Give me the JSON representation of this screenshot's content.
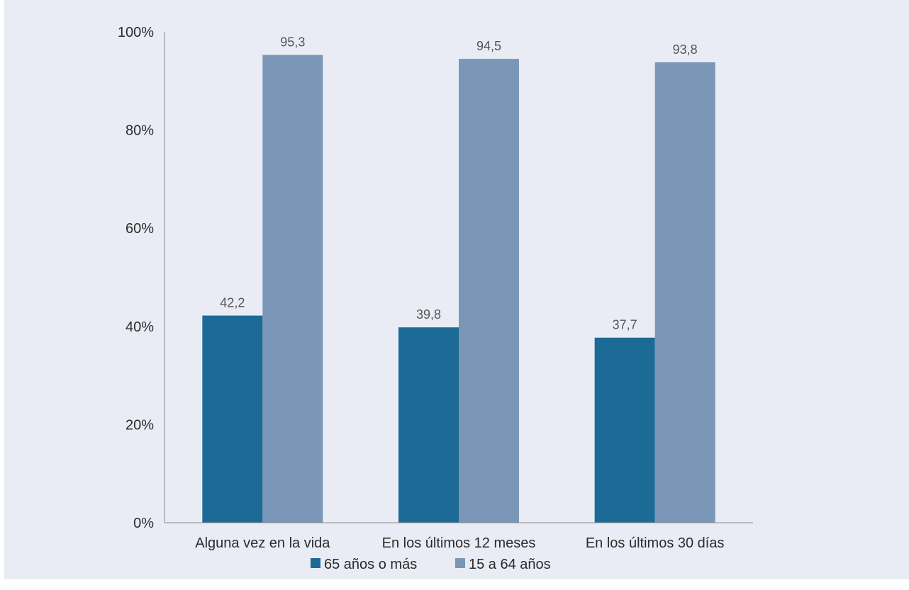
{
  "chart_data": {
    "type": "bar",
    "categories": [
      "Alguna vez en la vida",
      "En los últimos 12 meses",
      "En los últimos 30 días"
    ],
    "series": [
      {
        "name": "65 años o más",
        "values": [
          42.2,
          39.8,
          37.7
        ],
        "labels": [
          "42,2",
          "39,8",
          "37,7"
        ],
        "color": "#1c6a96"
      },
      {
        "name": "15 a 64 años",
        "values": [
          95.3,
          94.5,
          93.8
        ],
        "labels": [
          "95,3",
          "94,5",
          "93,8"
        ],
        "color": "#7a97b8"
      }
    ],
    "ylim": [
      0,
      100
    ],
    "yticks": [
      0,
      20,
      40,
      60,
      80,
      100
    ],
    "ytick_labels": [
      "0%",
      "20%",
      "40%",
      "60%",
      "80%",
      "100%"
    ],
    "legend": "bottom",
    "grid": false,
    "background_color": "#e9ecf4",
    "axis_color": "#8a8a8a"
  }
}
